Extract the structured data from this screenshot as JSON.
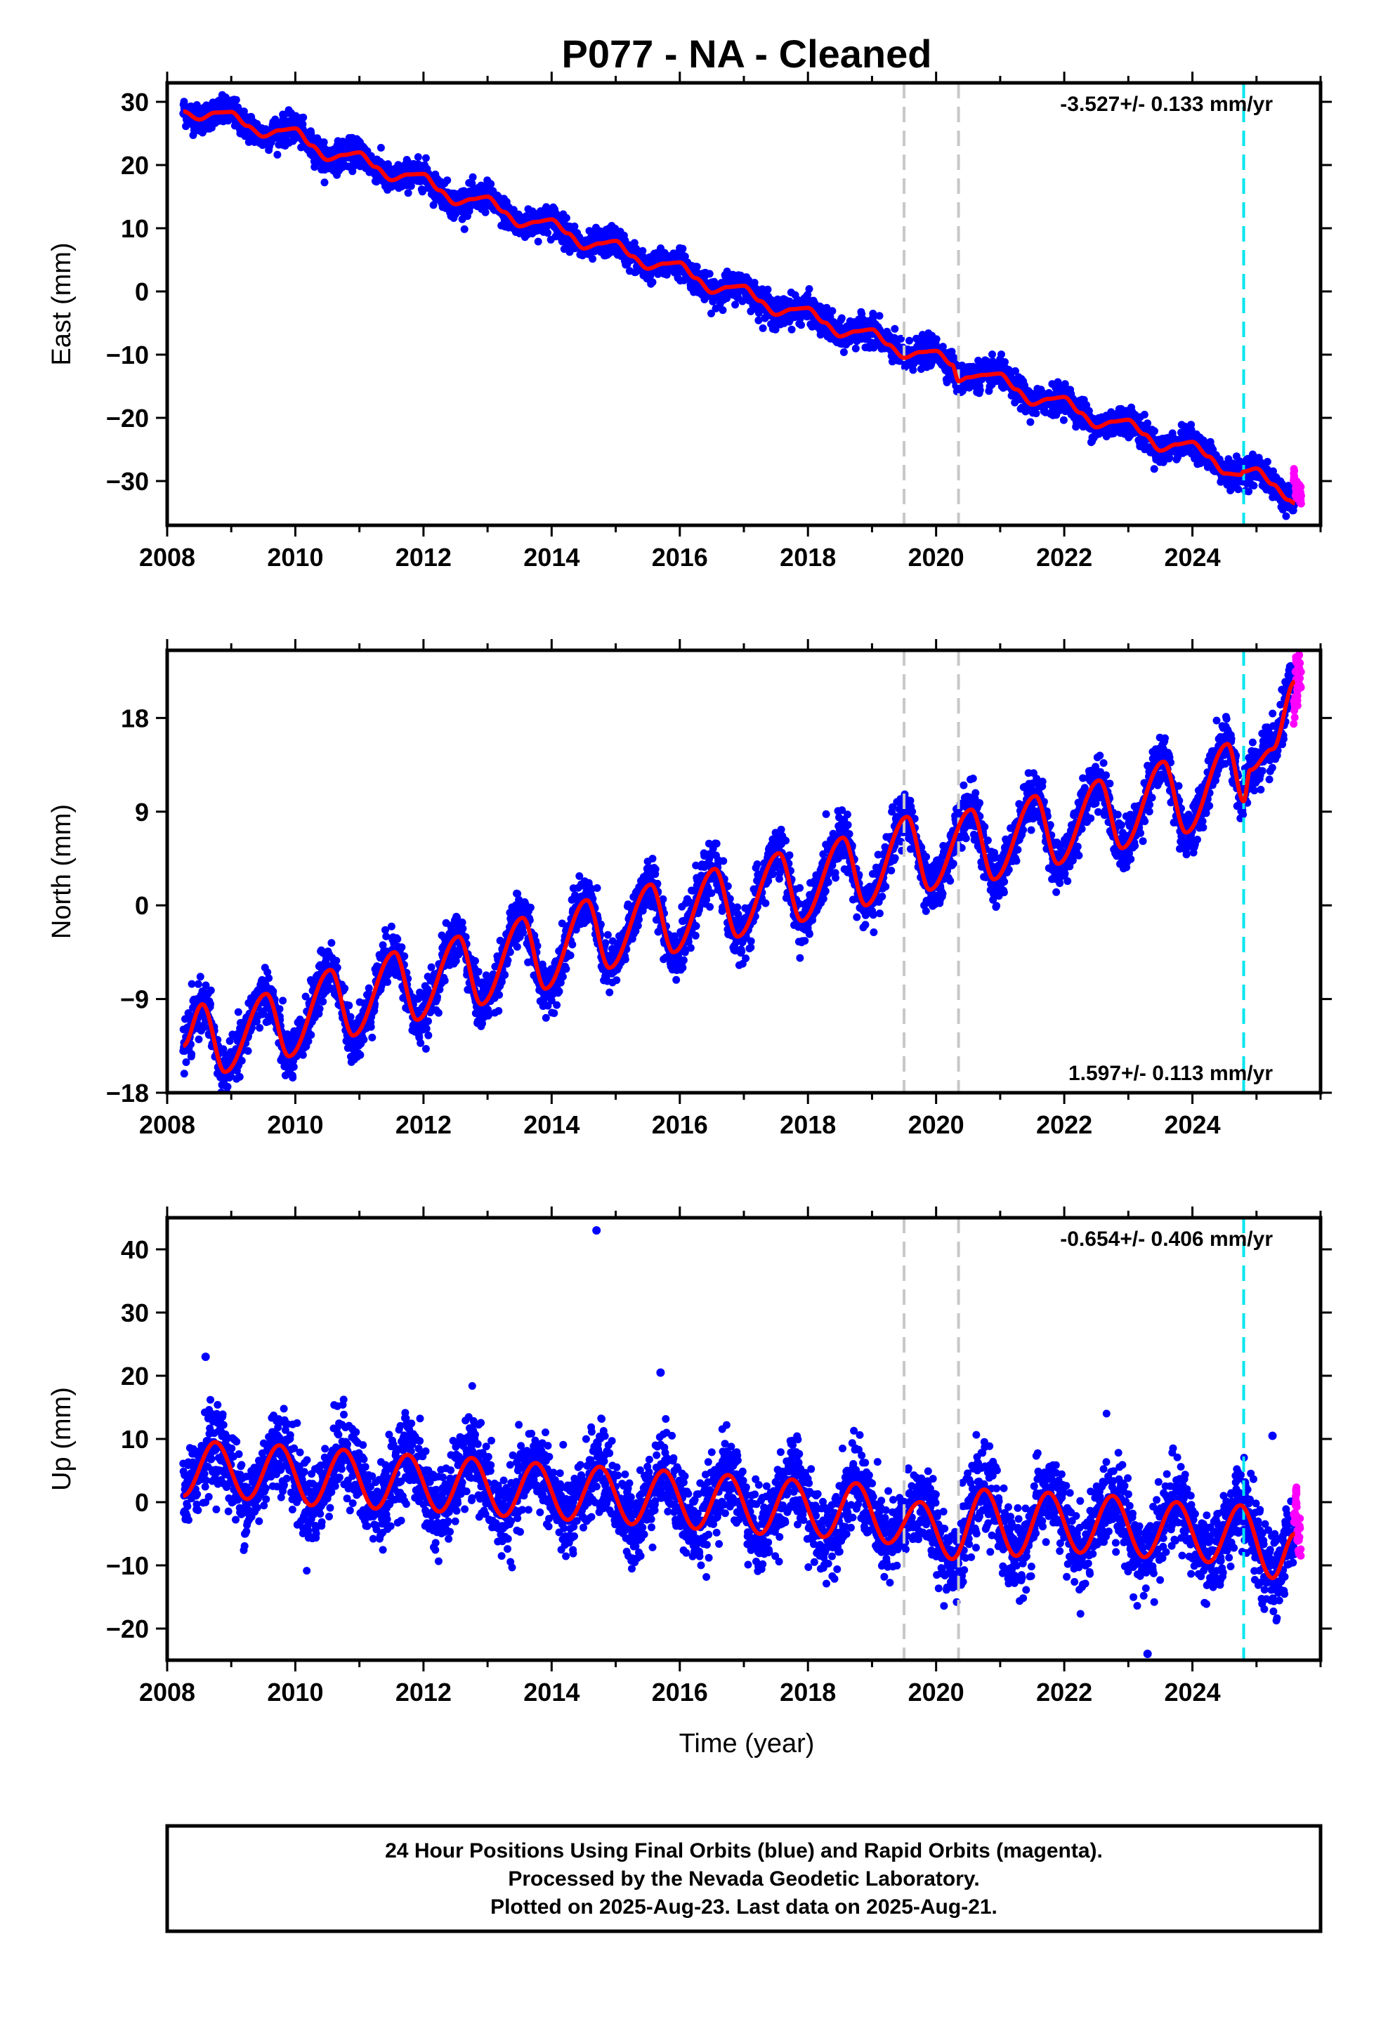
{
  "title": "P077  - NA - Cleaned",
  "xlabel": "Time (year)",
  "colors": {
    "final": "#0000ff",
    "rapid": "#ff00ff",
    "model": "#ff0000",
    "event_gray": "#c8c8c8",
    "event_cyan": "#00e5ee"
  },
  "footer": {
    "line1": "24 Hour Positions Using Final Orbits (blue) and Rapid Orbits (magenta).",
    "line2": "Processed by the Nevada Geodetic Laboratory.",
    "line3": "Plotted on 2025-Aug-23. Last data on 2025-Aug-21."
  },
  "chart_data": [
    {
      "type": "scatter",
      "ylabel": "East (mm)",
      "rate_label": "-3.527+/- 0.133 mm/yr",
      "xlim": [
        2008.0,
        2026.0
      ],
      "ylim": [
        -37,
        33
      ],
      "xticks": [
        2008,
        2010,
        2012,
        2014,
        2016,
        2018,
        2020,
        2022,
        2024
      ],
      "xtick_labels": [
        "2008",
        "2010",
        "2012",
        "2014",
        "2016",
        "2018",
        "2020",
        "2022",
        "2024"
      ],
      "yticks": [
        30,
        20,
        10,
        0,
        -10,
        -20,
        -30
      ],
      "ytick_labels": [
        "30",
        "20",
        "10",
        "0",
        "−10",
        "−20",
        "−30"
      ],
      "events_gray": [
        2019.5,
        2020.35
      ],
      "events_cyan": [
        2024.8
      ],
      "series": [
        {
          "role": "model",
          "x": [
            2008.25,
            2008.5,
            2008.75,
            2009.0,
            2009.25,
            2009.5,
            2009.75,
            2010.0,
            2010.25,
            2010.5,
            2010.75,
            2011.0,
            2011.25,
            2011.5,
            2011.75,
            2012.0,
            2012.25,
            2012.5,
            2012.75,
            2013.0,
            2013.25,
            2013.5,
            2013.75,
            2014.0,
            2014.25,
            2014.5,
            2014.75,
            2015.0,
            2015.25,
            2015.5,
            2015.75,
            2016.0,
            2016.25,
            2016.5,
            2016.75,
            2017.0,
            2017.25,
            2017.5,
            2017.75,
            2018.0,
            2018.25,
            2018.5,
            2018.75,
            2019.0,
            2019.25,
            2019.5,
            2019.75,
            2020.0,
            2020.25,
            2020.35,
            2020.5,
            2020.75,
            2021.0,
            2021.25,
            2021.5,
            2021.75,
            2022.0,
            2022.25,
            2022.5,
            2022.75,
            2023.0,
            2023.25,
            2023.5,
            2023.75,
            2024.0,
            2024.25,
            2024.5,
            2024.75,
            2024.8,
            2025.0,
            2025.25,
            2025.5,
            2025.6
          ],
          "y": [
            28.5,
            27.2,
            28.3,
            28.4,
            26.2,
            24.5,
            25.5,
            25.8,
            23.1,
            20.8,
            21.6,
            22.0,
            19.7,
            17.6,
            18.5,
            18.6,
            16.0,
            13.8,
            14.6,
            15.0,
            12.6,
            10.3,
            11.0,
            11.4,
            9.2,
            6.8,
            7.6,
            8.0,
            5.6,
            3.6,
            4.4,
            4.6,
            2.1,
            -0.2,
            0.7,
            0.9,
            -1.5,
            -3.7,
            -2.8,
            -2.6,
            -4.9,
            -7.1,
            -6.3,
            -6.0,
            -8.4,
            -10.5,
            -9.6,
            -9.4,
            -11.6,
            -14.2,
            -13.6,
            -13.2,
            -13.0,
            -15.5,
            -17.9,
            -17.0,
            -16.7,
            -19.2,
            -21.5,
            -20.6,
            -20.3,
            -22.6,
            -25.2,
            -24.2,
            -23.8,
            -26.1,
            -28.8,
            -29.0,
            -28.5,
            -28.0,
            -30.5,
            -33.0,
            -33.5
          ]
        },
        {
          "role": "rapid",
          "x": [
            2025.6,
            2025.62,
            2025.64,
            2025.66,
            2025.68,
            2025.7
          ],
          "y": [
            -29.5,
            -31.0,
            -32.5,
            -30.5,
            -33.0,
            -31.8
          ]
        }
      ]
    },
    {
      "type": "scatter",
      "ylabel": "North (mm)",
      "rate_label": "1.597+/- 0.113 mm/yr",
      "xlim": [
        2008.0,
        2026.0
      ],
      "ylim": [
        -18,
        24.5
      ],
      "xticks": [
        2008,
        2010,
        2012,
        2014,
        2016,
        2018,
        2020,
        2022,
        2024
      ],
      "xtick_labels": [
        "2008",
        "2010",
        "2012",
        "2014",
        "2016",
        "2018",
        "2020",
        "2022",
        "2024"
      ],
      "yticks": [
        18,
        9,
        0,
        -9,
        -18
      ],
      "ytick_labels": [
        "18",
        "9",
        "0",
        "−9",
        "−18"
      ],
      "events_gray": [
        2019.5,
        2020.35
      ],
      "events_cyan": [
        2024.8
      ],
      "series": [
        {
          "role": "model",
          "x": [
            2008.25,
            2008.55,
            2008.9,
            2009.55,
            2009.9,
            2010.55,
            2010.9,
            2011.55,
            2011.9,
            2012.55,
            2012.9,
            2013.55,
            2013.9,
            2014.55,
            2014.9,
            2015.55,
            2015.9,
            2016.55,
            2016.9,
            2017.55,
            2017.9,
            2018.55,
            2018.9,
            2019.55,
            2019.9,
            2020.55,
            2020.9,
            2021.55,
            2021.9,
            2022.55,
            2022.9,
            2023.55,
            2023.9,
            2024.55,
            2024.8,
            2024.9,
            2025.25,
            2025.6
          ],
          "y": [
            -13.5,
            -9.5,
            -16.0,
            -8.5,
            -14.5,
            -6.2,
            -12.5,
            -4.5,
            -11.0,
            -3.0,
            -9.5,
            -1.2,
            -8.0,
            0.5,
            -6.0,
            2.0,
            -4.5,
            3.5,
            -3.0,
            5.0,
            -1.5,
            6.5,
            0.0,
            8.5,
            1.5,
            9.2,
            2.5,
            10.5,
            4.0,
            12.0,
            5.5,
            13.8,
            7.0,
            15.5,
            10.0,
            13.0,
            15.0,
            21.5
          ]
        },
        {
          "role": "rapid",
          "x": [
            2025.6,
            2025.62,
            2025.64,
            2025.66,
            2025.68,
            2025.7
          ],
          "y": [
            19.5,
            23.5,
            21.0,
            24.0,
            22.5,
            20.5
          ]
        }
      ]
    },
    {
      "type": "scatter",
      "ylabel": "Up (mm)",
      "rate_label": "-0.654+/- 0.406 mm/yr",
      "xlim": [
        2008.0,
        2026.0
      ],
      "ylim": [
        -25,
        45
      ],
      "xticks": [
        2008,
        2010,
        2012,
        2014,
        2016,
        2018,
        2020,
        2022,
        2024
      ],
      "xtick_labels": [
        "2008",
        "2010",
        "2012",
        "2014",
        "2016",
        "2018",
        "2020",
        "2022",
        "2024"
      ],
      "yticks": [
        40,
        30,
        20,
        10,
        0,
        -10,
        -20
      ],
      "ytick_labels": [
        "40",
        "30",
        "20",
        "10",
        "0",
        "−10",
        "−20"
      ],
      "events_gray": [
        2019.5,
        2020.35
      ],
      "events_cyan": [
        2024.8
      ],
      "outliers": {
        "x": [
          2014.7,
          2023.3,
          2008.6,
          2015.7,
          2025.25
        ],
        "y": [
          43.0,
          -24.0,
          23.0,
          20.5,
          10.5
        ]
      },
      "series": [
        {
          "role": "model",
          "x": [
            2008.25,
            2008.75,
            2009.25,
            2009.75,
            2010.25,
            2010.75,
            2011.25,
            2011.75,
            2012.25,
            2012.75,
            2013.25,
            2013.75,
            2014.25,
            2014.75,
            2015.25,
            2015.75,
            2016.25,
            2016.75,
            2017.25,
            2017.75,
            2018.25,
            2018.75,
            2019.25,
            2019.75,
            2020.25,
            2020.75,
            2021.25,
            2021.75,
            2022.25,
            2022.75,
            2023.25,
            2023.75,
            2024.25,
            2024.75,
            2025.25,
            2025.6
          ],
          "y": [
            1.0,
            9.5,
            0.5,
            9.0,
            -0.5,
            8.3,
            -1.0,
            7.5,
            -1.5,
            7.0,
            -2.2,
            6.2,
            -2.8,
            5.6,
            -3.5,
            5.0,
            -4.2,
            4.3,
            -5.0,
            3.6,
            -5.5,
            3.0,
            -6.5,
            0.0,
            -9.0,
            2.0,
            -8.5,
            1.5,
            -8.0,
            1.0,
            -8.7,
            0.0,
            -9.5,
            -0.5,
            -12.0,
            -5.0
          ]
        },
        {
          "role": "rapid",
          "x": [
            2025.6,
            2025.62,
            2025.64,
            2025.66,
            2025.68,
            2025.7
          ],
          "y": [
            -2.0,
            1.5,
            -5.0,
            -8.0,
            -3.0,
            -9.5
          ]
        }
      ]
    }
  ]
}
